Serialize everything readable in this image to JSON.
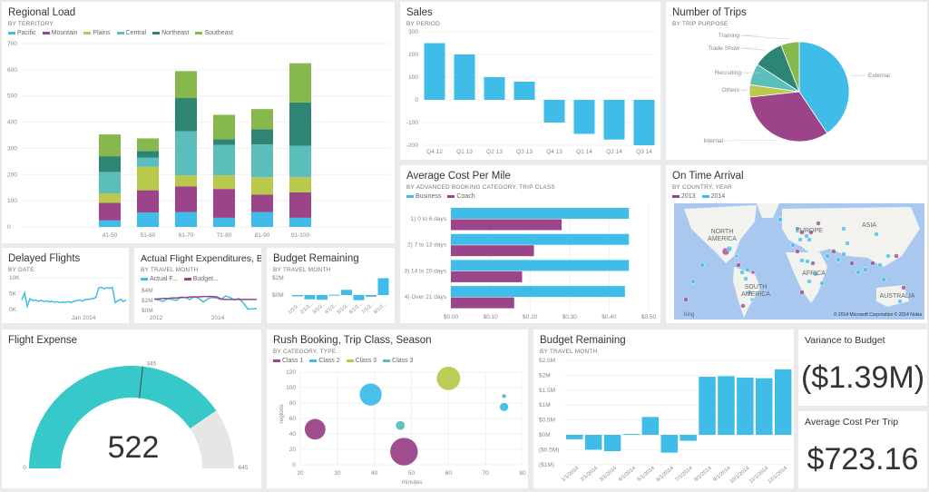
{
  "colors": {
    "background": "#eaeaea",
    "tile": "#ffffff",
    "blue": "#3fbde8",
    "purple": "#9b4489",
    "lime": "#b8c94c",
    "teal": "#5cbebb",
    "dark_teal": "#2f8573",
    "green": "#86b84e",
    "gauge_fill": "#37c9c9",
    "gauge_track": "#e6e6e6",
    "map_water": "#a9c8f0",
    "map_land": "#f2f2ee"
  },
  "tiles": {
    "regional_load": {
      "title": "Regional Load",
      "subtitle": "BY TERRITORY"
    },
    "sales": {
      "title": "Sales",
      "subtitle": "BY PERIOD"
    },
    "trips": {
      "title": "Number of Trips",
      "subtitle": "BY TRIP PURPOSE"
    },
    "cost_mile": {
      "title": "Average Cost Per Mile",
      "subtitle": "BY ADVANCED BOOKING CATEGORY, TRIP CLASS"
    },
    "on_time": {
      "title": "On Time Arrival",
      "subtitle": "BY COUNTRY, YEAR",
      "legend": [
        "2013",
        "2014"
      ],
      "map_labels": [
        "NORTH AMERICA",
        "EUROPE",
        "ASIA",
        "AFRICA",
        "SOUTH AMERICA",
        "AUSTRALIA"
      ],
      "attribution": "© 2014 Microsoft Corporation   © 2014 Nokia",
      "logo": "bing"
    },
    "delayed": {
      "title": "Delayed Flights",
      "subtitle": "BY DATE"
    },
    "actual": {
      "title": "Actual Flight Expenditures, Bu...",
      "subtitle": "BY TRAVEL MONTH",
      "legend": [
        "Actual F...",
        "Budget..."
      ]
    },
    "budget_small": {
      "title": "Budget Remaining",
      "subtitle": "BY TRAVEL MONTH"
    },
    "flight_expense": {
      "title": "Flight Expense"
    },
    "rush": {
      "title": "Rush Booking, Trip Class, Season",
      "subtitle": "BY CATEGORY, TYPE"
    },
    "budget_big": {
      "title": "Budget Remaining",
      "subtitle": "BY TRAVEL MONTH"
    },
    "variance": {
      "title": "Variance to Budget",
      "value": "($1.39M)"
    },
    "avg_trip": {
      "title": "Average Cost Per Trip",
      "value": "$723.16"
    }
  },
  "chart_data": [
    {
      "id": "regional_load",
      "type": "bar",
      "stacked": true,
      "categories": [
        "41-50",
        "51-60",
        "61-70",
        "71-80",
        "81-90",
        "91-100"
      ],
      "ylim": [
        0,
        700
      ],
      "yticks": [
        0,
        100,
        200,
        300,
        400,
        500,
        600,
        700
      ],
      "legend": "top-left",
      "grid": true,
      "series": [
        {
          "name": "Pacific",
          "color": "#3fbde8",
          "values": [
            25,
            55,
            57,
            35,
            57,
            35
          ]
        },
        {
          "name": "Mountain",
          "color": "#9b4489",
          "values": [
            67,
            85,
            98,
            110,
            66,
            97
          ]
        },
        {
          "name": "Plains",
          "color": "#b8c94c",
          "values": [
            36,
            90,
            42,
            52,
            67,
            58
          ]
        },
        {
          "name": "Central",
          "color": "#5cbebb",
          "values": [
            82,
            35,
            168,
            116,
            125,
            120
          ]
        },
        {
          "name": "Northeast",
          "color": "#2f8573",
          "values": [
            60,
            25,
            127,
            22,
            58,
            165
          ]
        },
        {
          "name": "Southeast",
          "color": "#86b84e",
          "values": [
            83,
            48,
            103,
            93,
            77,
            150
          ]
        }
      ]
    },
    {
      "id": "sales",
      "type": "bar",
      "categories": [
        "Q4 12",
        "Q1 13",
        "Q2 13",
        "Q3 13",
        "Q4 13",
        "Q1 14",
        "Q2 14",
        "Q3 14"
      ],
      "values": [
        250,
        200,
        100,
        80,
        -100,
        -150,
        -175,
        -200
      ],
      "ylim": [
        -200,
        300
      ],
      "yticks": [
        -200,
        -100,
        0,
        100,
        200,
        300
      ],
      "grid": true
    },
    {
      "id": "trips",
      "type": "pie",
      "labels": [
        "External",
        "Internal",
        "Others",
        "Recruiting",
        "Trade Show",
        "Training"
      ],
      "values": [
        41,
        33,
        4,
        7,
        10,
        6
      ],
      "colors": [
        "#3fbde8",
        "#9b4489",
        "#b8c94c",
        "#5cbebb",
        "#2f8573",
        "#86b84e"
      ]
    },
    {
      "id": "cost_mile",
      "type": "bar",
      "orientation": "horizontal",
      "categories": [
        "1) 0 to 6 days",
        "2) 7 to 13 days",
        "3) 14 to 20 days",
        "4) Over 21 days"
      ],
      "xlim": [
        0,
        0.5
      ],
      "xticks": [
        "$0.00",
        "$0.10",
        "$0.20",
        "$0.30",
        "$0.40",
        "$0.50"
      ],
      "legend": "top-left",
      "series": [
        {
          "name": "Business",
          "color": "#3fbde8",
          "values": [
            0.45,
            0.45,
            0.45,
            0.44
          ]
        },
        {
          "name": "Coach",
          "color": "#9b4489",
          "values": [
            0.28,
            0.21,
            0.18,
            0.16
          ]
        }
      ]
    },
    {
      "id": "delayed",
      "type": "line",
      "x_label_tick": "Jan 2014",
      "yticks": [
        "0K",
        "5K",
        "10K"
      ],
      "ylim": [
        0,
        10000
      ],
      "values": [
        3000,
        5200,
        1000,
        3400,
        2800,
        3000,
        2600,
        2900,
        2500,
        2700,
        2400,
        2600,
        2300,
        2500,
        2200,
        2400,
        2300,
        2500,
        2200,
        2600,
        2800,
        3000,
        2700,
        3100,
        3200,
        3300,
        3500,
        3800,
        6800,
        7000,
        6600,
        6900,
        6700,
        7000,
        2200,
        2800,
        3200,
        2500,
        3000
      ]
    },
    {
      "id": "actual",
      "type": "line",
      "yticks": [
        "$0M",
        "$2M",
        "$4M"
      ],
      "ylim": [
        0,
        4
      ],
      "xticks": [
        "2012",
        "2014"
      ],
      "series": [
        {
          "name": "Actual F...",
          "color": "#3fbde8",
          "values": [
            2.3,
            2.1,
            1.8,
            2.4,
            2.2,
            2.0,
            2.7,
            2.6,
            2.2,
            2.8,
            2.4,
            1.7,
            2.3,
            2.6,
            2.5,
            2.2,
            2.9,
            2.6,
            2.1,
            2.4,
            1.5,
            0.3,
            0.3,
            0.4
          ]
        },
        {
          "name": "Budget...",
          "color": "#9b4489",
          "values": [
            2.3,
            2.3,
            2.4,
            2.4,
            2.5,
            2.5,
            2.6,
            2.6,
            2.7,
            2.7,
            2.7,
            2.8,
            2.8,
            2.8,
            2.7,
            2.3,
            2.2,
            2.2,
            2.2,
            2.2,
            2.2,
            2.2,
            2.2,
            2.2
          ]
        }
      ]
    },
    {
      "id": "budget_small",
      "type": "bar",
      "categories": [
        "1/1/2...",
        "2/1/2...",
        "3/1/2...",
        "4/1/2...",
        "5/1/2...",
        "6/1/2...",
        "7/1/2...",
        "8/1/2..."
      ],
      "values": [
        -0.15,
        -0.5,
        -0.55,
        0.03,
        0.6,
        -0.6,
        -0.2,
        1.95
      ],
      "yticks": [
        "$0M",
        "$2M"
      ]
    },
    {
      "id": "flight_expense",
      "type": "gauge",
      "value": 522,
      "display_value": "522",
      "min": 0,
      "max": 645,
      "target": 345
    },
    {
      "id": "rush",
      "type": "scatter",
      "xlabel": "minutes",
      "ylabel": "regions",
      "xlim": [
        20,
        80
      ],
      "ylim": [
        0,
        120
      ],
      "xticks": [
        20,
        30,
        40,
        50,
        60,
        70,
        80
      ],
      "yticks": [
        0,
        20,
        40,
        60,
        80,
        100,
        120
      ],
      "legend": "top-left",
      "series": [
        {
          "name": "Class 1",
          "color": "#9b4489",
          "points": [
            [
              24,
              46,
              3
            ],
            [
              48,
              17,
              4
            ]
          ]
        },
        {
          "name": "Class 2",
          "color": "#3fbde8",
          "points": [
            [
              39,
              91,
              3.2
            ],
            [
              75,
              75,
              1.2
            ]
          ]
        },
        {
          "name": "Class 3",
          "color": "#b8c94c",
          "points": [
            [
              60,
              112,
              3.4
            ]
          ]
        },
        {
          "name": "Class 3",
          "color": "#5cbebb",
          "points": [
            [
              47,
              51,
              1.3
            ],
            [
              75,
              89,
              0.6
            ]
          ]
        }
      ]
    },
    {
      "id": "budget_big",
      "type": "bar",
      "categories": [
        "1/1/2014",
        "2/1/2014",
        "3/1/2014",
        "4/1/2014",
        "5/1/2014",
        "6/1/2014",
        "7/1/2014",
        "8/1/2014",
        "9/1/2014",
        "10/1/2014",
        "11/1/2014",
        "12/1/2014"
      ],
      "values": [
        -0.15,
        -0.5,
        -0.55,
        0.03,
        0.6,
        -0.6,
        -0.2,
        1.95,
        1.97,
        1.92,
        1.9,
        2.2
      ],
      "ylim": [
        -1,
        2.5
      ],
      "yticks": [
        "($1M)",
        "($0.5M)",
        "$0M",
        "$0.5M",
        "$1M",
        "$1.5M",
        "$2M",
        "$2.5M"
      ],
      "grid": true
    }
  ]
}
